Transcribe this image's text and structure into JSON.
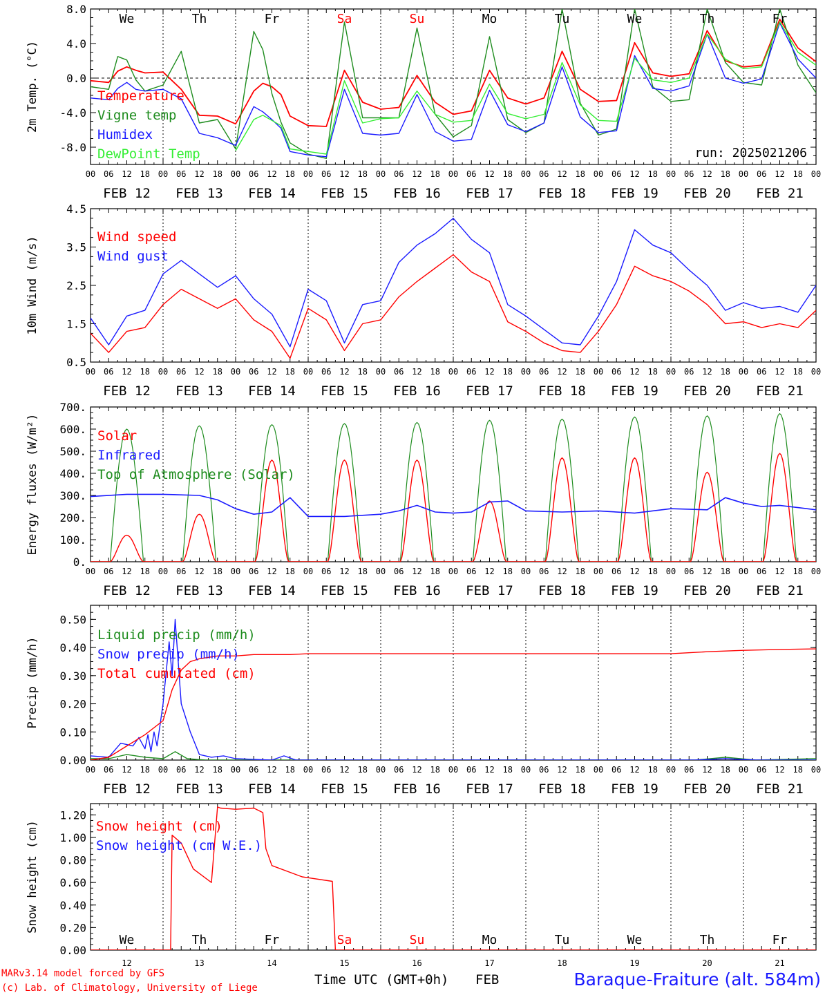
{
  "station": "Baraque-Fraiture (alt. 584m)",
  "run_label": "run: 2025021206",
  "footer": {
    "model": "MARv3.14 model forced by GFS",
    "copyright": "(c) Lab. of Climatology, University of Liege",
    "x_axis_title": "Time UTC (GMT+0h)",
    "month": "FEB"
  },
  "colors": {
    "red": "#ff0000",
    "green": "#1e8c1e",
    "blue": "#1a1aff",
    "light_green": "#33ee33",
    "black": "#000000"
  },
  "hour_ticks": [
    "00",
    "06",
    "12",
    "18"
  ],
  "dates": [
    "FEB 12",
    "FEB 13",
    "FEB 14",
    "FEB 15",
    "FEB 16",
    "FEB 17",
    "FEB 18",
    "FEB 19",
    "FEB 20",
    "FEB 21"
  ],
  "day_numbers": [
    "12",
    "13",
    "14",
    "15",
    "16",
    "17",
    "18",
    "19",
    "20",
    "21"
  ],
  "weekdays": [
    {
      "name": "We",
      "color": "#000000"
    },
    {
      "name": "Th",
      "color": "#000000"
    },
    {
      "name": "Fr",
      "color": "#000000"
    },
    {
      "name": "Sa",
      "color": "#ff0000"
    },
    {
      "name": "Su",
      "color": "#ff0000"
    },
    {
      "name": "Mo",
      "color": "#000000"
    },
    {
      "name": "Tu",
      "color": "#000000"
    },
    {
      "name": "We",
      "color": "#000000"
    },
    {
      "name": "Th",
      "color": "#000000"
    },
    {
      "name": "Fr",
      "color": "#000000"
    }
  ],
  "chart_data": [
    {
      "type": "line",
      "ylabel": "2m Temp. (°C)",
      "ylim": [
        -10,
        8
      ],
      "yticks": [
        -8,
        -4,
        0,
        4,
        8
      ],
      "ytick_labels": [
        "-8.0",
        "-4.0",
        "0.0",
        "4.0",
        "8.0"
      ],
      "zero_line": true,
      "x_unit": "hours since FEB 12 00 UTC",
      "x": [
        0,
        6,
        9,
        12,
        15,
        18,
        24,
        30,
        36,
        42,
        48,
        54,
        57,
        60,
        63,
        66,
        72,
        78,
        84,
        90,
        96,
        102,
        108,
        114,
        120,
        126,
        132,
        138,
        144,
        150,
        156,
        162,
        168,
        174,
        180,
        186,
        192,
        198,
        204,
        210,
        216,
        222,
        228,
        234,
        240
      ],
      "series": [
        {
          "name": "Temperature",
          "color": "#ff0000",
          "values": [
            -0.3,
            -0.5,
            0.8,
            1.3,
            0.9,
            0.6,
            0.7,
            -1.3,
            -4.3,
            -4.4,
            -5.3,
            -1.5,
            -0.6,
            -1.0,
            -1.9,
            -4.4,
            -5.5,
            -5.6,
            0.9,
            -2.8,
            -3.6,
            -3.4,
            0.3,
            -2.8,
            -4.2,
            -3.8,
            0.9,
            -2.3,
            -3.0,
            -2.3,
            3.1,
            -1.3,
            -2.7,
            -2.6,
            4.1,
            0.6,
            0.2,
            0.5,
            5.5,
            2.0,
            1.3,
            1.5,
            6.8,
            3.5,
            1.9
          ]
        },
        {
          "name": "Vigne temp",
          "color": "#1e8c1e",
          "values": [
            -1.0,
            -1.3,
            2.5,
            2.1,
            -0.2,
            -1.5,
            -0.8,
            3.1,
            -5.2,
            -4.8,
            -8.2,
            5.4,
            3.3,
            -1.8,
            -5.1,
            -7.5,
            -8.8,
            -9.3,
            6.5,
            -4.6,
            -4.6,
            -4.6,
            5.8,
            -4.2,
            -6.8,
            -5.5,
            4.8,
            -4.8,
            -6.3,
            -5.2,
            8.0,
            -2.9,
            -6.6,
            -5.9,
            8.0,
            -1.0,
            -2.7,
            -2.5,
            8.0,
            1.8,
            -0.5,
            -0.8,
            8.0,
            1.5,
            -1.7
          ]
        },
        {
          "name": "Humidex",
          "color": "#1a1aff",
          "values": [
            -2.3,
            -2.5,
            -1.2,
            -0.5,
            -1.3,
            -1.5,
            -1.3,
            -2.4,
            -6.4,
            -6.9,
            -7.8,
            -3.3,
            -3.9,
            -4.8,
            -5.8,
            -8.5,
            -8.9,
            -9.1,
            -1.3,
            -6.4,
            -6.6,
            -6.4,
            -1.9,
            -6.2,
            -7.3,
            -7.1,
            -1.4,
            -5.4,
            -6.2,
            -5.2,
            1.3,
            -4.5,
            -6.3,
            -6.1,
            2.6,
            -1.2,
            -1.5,
            -0.9,
            5.1,
            0.0,
            -0.6,
            -0.1,
            6.4,
            2.2,
            0.0
          ]
        },
        {
          "name": "DewPoint Temp",
          "color": "#33ee33",
          "values": [
            null,
            null,
            null,
            null,
            null,
            null,
            null,
            null,
            null,
            null,
            -8.4,
            -4.8,
            -4.3,
            -4.9,
            -5.5,
            -8.2,
            -8.5,
            -8.8,
            -0.3,
            -5.2,
            -4.7,
            -4.6,
            -1.5,
            -4.2,
            -5.1,
            -4.9,
            -0.7,
            -4.1,
            -4.7,
            -4.2,
            1.8,
            -3.1,
            -4.9,
            -5.0,
            2.3,
            -0.2,
            -0.5,
            0.0,
            5.1,
            2.2,
            1.1,
            1.3,
            6.5,
            3.0,
            1.5
          ]
        }
      ]
    },
    {
      "type": "line",
      "ylabel": "10m Wind (m/s)",
      "ylim": [
        0.5,
        4.5
      ],
      "yticks": [
        0.5,
        1.5,
        2.5,
        3.5,
        4.5
      ],
      "ytick_labels": [
        "0.5",
        "1.5",
        "2.5",
        "3.5",
        "4.5"
      ],
      "x_unit": "hours since FEB 12 00 UTC",
      "x": [
        0,
        6,
        12,
        18,
        24,
        30,
        36,
        42,
        48,
        54,
        60,
        66,
        72,
        78,
        84,
        90,
        96,
        102,
        108,
        114,
        120,
        126,
        132,
        138,
        144,
        150,
        156,
        162,
        168,
        174,
        180,
        186,
        192,
        198,
        204,
        210,
        216,
        222,
        228,
        234,
        240
      ],
      "series": [
        {
          "name": "Wind speed",
          "color": "#ff0000",
          "values": [
            1.25,
            0.75,
            1.3,
            1.4,
            2.0,
            2.4,
            2.15,
            1.9,
            2.15,
            1.6,
            1.3,
            0.6,
            1.9,
            1.6,
            0.8,
            1.5,
            1.6,
            2.2,
            2.6,
            2.95,
            3.3,
            2.85,
            2.6,
            1.55,
            1.3,
            1.0,
            0.8,
            0.75,
            1.3,
            2.0,
            3.0,
            2.75,
            2.6,
            2.35,
            2.0,
            1.5,
            1.55,
            1.4,
            1.5,
            1.4,
            1.85
          ]
        },
        {
          "name": "Wind gust",
          "color": "#1a1aff",
          "values": [
            1.65,
            0.95,
            1.7,
            1.85,
            2.8,
            3.15,
            2.8,
            2.45,
            2.75,
            2.15,
            1.75,
            0.9,
            2.4,
            2.1,
            1.0,
            2.0,
            2.1,
            3.1,
            3.55,
            3.85,
            4.25,
            3.7,
            3.35,
            2.0,
            1.7,
            1.35,
            1.0,
            0.95,
            1.7,
            2.6,
            3.95,
            3.55,
            3.35,
            2.9,
            2.5,
            1.85,
            2.05,
            1.9,
            1.95,
            1.8,
            2.5
          ]
        }
      ]
    },
    {
      "type": "line",
      "ylabel": "Energy fluxes (W/m²)",
      "ylim": [
        0,
        700
      ],
      "yticks": [
        0,
        100,
        200,
        300,
        400,
        500,
        600,
        700
      ],
      "ytick_labels": [
        "0.",
        "100.",
        "200.",
        "300.",
        "400.",
        "500.",
        "600.",
        "700."
      ],
      "x_unit": "hours since FEB 12 00 UTC",
      "solar_window_hours": [
        6.5,
        17.5
      ],
      "solar_peak_hour": 12,
      "solar_daily_peaks": [
        120,
        215,
        460,
        460,
        460,
        275,
        470,
        470,
        405,
        490
      ],
      "toa_daily_peaks": [
        600,
        615,
        620,
        625,
        630,
        640,
        645,
        655,
        660,
        670
      ],
      "series": [
        {
          "name": "Solar",
          "color": "#ff0000"
        },
        {
          "name": "Infrared",
          "color": "#1a1aff",
          "x": [
            0,
            12,
            24,
            36,
            42,
            48,
            54,
            60,
            66,
            72,
            84,
            96,
            102,
            108,
            114,
            120,
            126,
            132,
            138,
            144,
            156,
            168,
            180,
            192,
            204,
            210,
            216,
            222,
            228,
            234,
            240
          ],
          "values": [
            295,
            305,
            305,
            300,
            280,
            240,
            215,
            225,
            290,
            205,
            205,
            215,
            230,
            255,
            225,
            220,
            225,
            270,
            275,
            230,
            225,
            230,
            220,
            240,
            235,
            290,
            265,
            250,
            255,
            245,
            235
          ]
        },
        {
          "name": "Top of Atmosphere (Solar)",
          "color": "#1e8c1e"
        }
      ]
    },
    {
      "type": "line",
      "ylabel": "Precip (mm/h)",
      "ylim": [
        0,
        0.55
      ],
      "yticks": [
        0,
        0.1,
        0.2,
        0.3,
        0.4,
        0.5
      ],
      "ytick_labels": [
        "0.00",
        "0.10",
        "0.20",
        "0.30",
        "0.40",
        "0.50"
      ],
      "x_unit": "hours since FEB 12 00 UTC",
      "series": [
        {
          "name": "Liquid precip (mm/h)",
          "color": "#1e8c1e",
          "x": [
            0,
            6,
            12,
            18,
            24,
            28,
            32,
            38,
            48,
            168,
            180,
            200,
            210,
            220,
            240
          ],
          "values": [
            0.005,
            0.005,
            0.02,
            0.01,
            0.005,
            0.03,
            0.005,
            0.0,
            0.0,
            0.0,
            0.0,
            0.0,
            0.01,
            0.0,
            0.005
          ]
        },
        {
          "name": "Snow precip (mm/h)",
          "color": "#1a1aff",
          "x": [
            0,
            6,
            10,
            14,
            16,
            18,
            19,
            20,
            21,
            22,
            24,
            26,
            27,
            28,
            30,
            33,
            36,
            40,
            44,
            48,
            60,
            64,
            68,
            72,
            200,
            210,
            220,
            240
          ],
          "values": [
            0.015,
            0.01,
            0.06,
            0.05,
            0.08,
            0.04,
            0.09,
            0.03,
            0.1,
            0.05,
            0.2,
            0.42,
            0.3,
            0.5,
            0.2,
            0.1,
            0.02,
            0.01,
            0.015,
            0.005,
            0.0,
            0.015,
            0.0,
            0.0,
            0.0,
            0.005,
            0.0,
            0.0
          ]
        },
        {
          "name": "Total cumulated (cm)",
          "color": "#ff0000",
          "x": [
            0,
            6,
            12,
            18,
            24,
            27,
            30,
            33,
            36,
            42,
            48,
            54,
            60,
            66,
            72,
            192,
            204,
            216,
            228,
            240
          ],
          "values": [
            0.0,
            0.01,
            0.05,
            0.09,
            0.14,
            0.25,
            0.32,
            0.35,
            0.36,
            0.37,
            0.37,
            0.375,
            0.375,
            0.375,
            0.378,
            0.378,
            0.385,
            0.39,
            0.393,
            0.395
          ]
        }
      ]
    },
    {
      "type": "line",
      "ylabel": "Snow height (cm)",
      "ylim": [
        0,
        1.3
      ],
      "yticks": [
        0,
        0.2,
        0.4,
        0.6,
        0.8,
        1.0,
        1.2
      ],
      "ytick_labels": [
        "0.00",
        "0.20",
        "0.40",
        "0.60",
        "0.80",
        "1.00",
        "1.20"
      ],
      "x_unit": "hours since FEB 12 00 UTC",
      "series": [
        {
          "name": "Snow height (cm)",
          "color": "#ff0000",
          "x": [
            0,
            26.5,
            27,
            30,
            34,
            40,
            42,
            43,
            48,
            54,
            57,
            58,
            60,
            70,
            80,
            81,
            240
          ],
          "values": [
            0.0,
            0.0,
            1.02,
            0.95,
            0.72,
            0.6,
            1.27,
            1.26,
            1.25,
            1.26,
            1.22,
            0.9,
            0.75,
            0.65,
            0.61,
            0.0,
            0.0
          ]
        },
        {
          "name": "Snow height (cm W.E.)",
          "color": "#1a1aff"
        }
      ]
    }
  ]
}
